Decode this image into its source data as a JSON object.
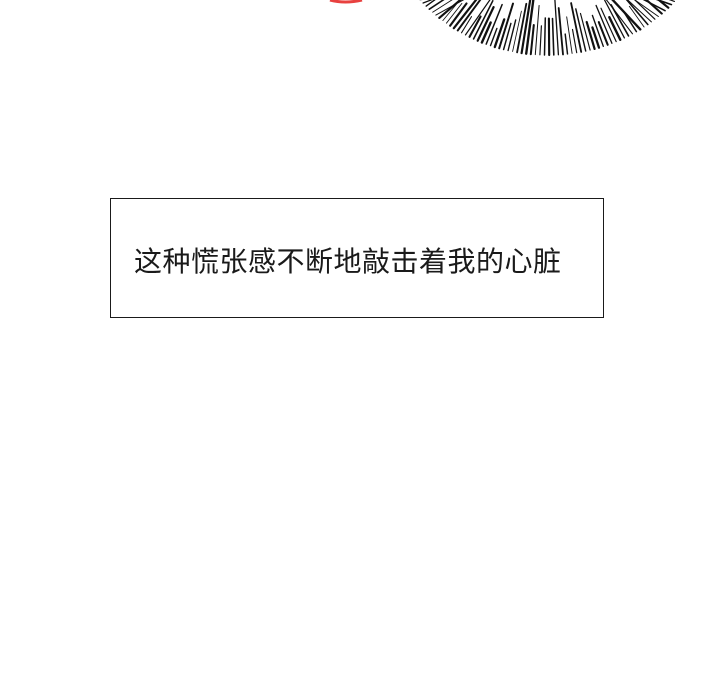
{
  "panel": {
    "caption": "这种慌张感不断地敲击着我的心脏"
  },
  "colors": {
    "ink": "#1a1a1a",
    "accent": "#e8413f",
    "background": "#ffffff"
  },
  "decoration": {
    "burst_lines": "speed-lines-burst"
  }
}
